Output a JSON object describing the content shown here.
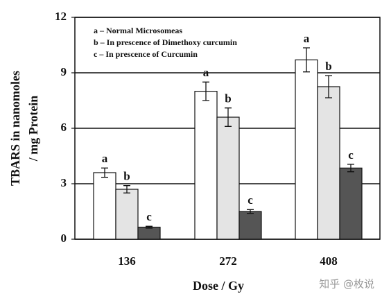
{
  "chart_data": {
    "type": "bar",
    "ylabel": [
      "TBARS in nanomoles",
      "/ mg Protein"
    ],
    "xlabel": "Dose /  Gy",
    "categories": [
      "136",
      "272",
      "408"
    ],
    "series": [
      {
        "name": "a – Normal Microsomeas",
        "letter": "a",
        "color": "#ffffff",
        "values": [
          3.6,
          8.0,
          9.7
        ],
        "errors": [
          0.25,
          0.5,
          0.65
        ]
      },
      {
        "name": "b – In prescence of Dimethoxy curcumin",
        "letter": "b",
        "color": "#e4e4e4",
        "values": [
          2.7,
          6.6,
          8.25
        ],
        "errors": [
          0.2,
          0.5,
          0.6
        ]
      },
      {
        "name": "c – In prescence of Curcumin",
        "letter": "c",
        "color": "#555555",
        "values": [
          0.65,
          1.5,
          3.85
        ],
        "errors": [
          0.05,
          0.1,
          0.2
        ]
      }
    ],
    "ylim": [
      0,
      12
    ],
    "yticks": [
      0,
      3,
      6,
      9,
      12
    ],
    "grid": true,
    "watermark": "知乎 @枚说"
  }
}
